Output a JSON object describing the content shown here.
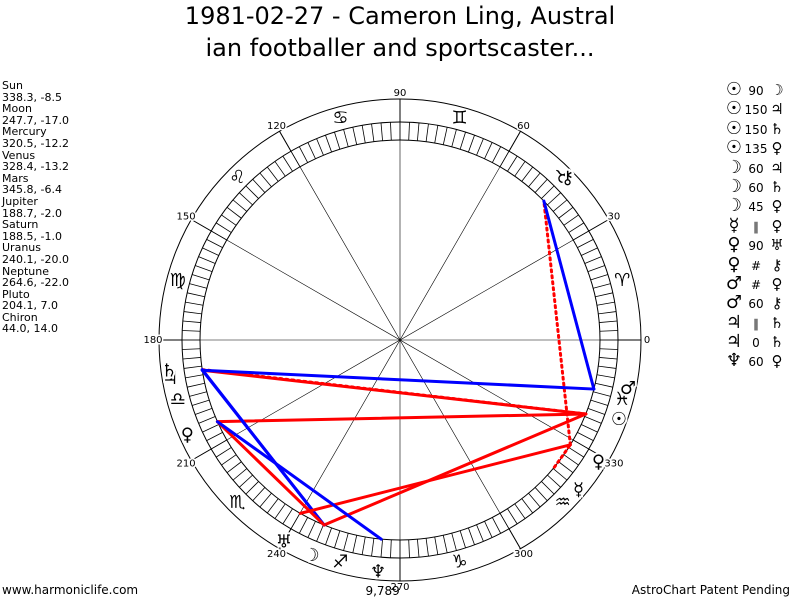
{
  "title": {
    "line1": "1981-02-27 - Cameron Ling, Austral",
    "line2": "ian footballer and sportscaster..."
  },
  "planets": [
    {
      "name": "Sun",
      "position": "338.3, -8.5"
    },
    {
      "name": "Moon",
      "position": "247.7, -17.0"
    },
    {
      "name": "Mercury",
      "position": "320.5, -12.2"
    },
    {
      "name": "Venus",
      "position": "328.4, -13.2"
    },
    {
      "name": "Mars",
      "position": "345.8, -6.4"
    },
    {
      "name": "Jupiter",
      "position": "188.7, -2.0"
    },
    {
      "name": "Saturn",
      "position": "188.5, -1.0"
    },
    {
      "name": "Uranus",
      "position": "240.1, -20.0"
    },
    {
      "name": "Neptune",
      "position": "264.6, -22.0"
    },
    {
      "name": "Pluto",
      "position": "204.1, 7.0"
    },
    {
      "name": "Chiron",
      "position": "44.0, 14.0"
    }
  ],
  "aspects": [
    {
      "p1": "☉",
      "value": "90",
      "p2": "☽"
    },
    {
      "p1": "☉",
      "value": "150",
      "p2": "♃"
    },
    {
      "p1": "☉",
      "value": "150",
      "p2": "♄"
    },
    {
      "p1": "☉",
      "value": "135",
      "p2": "♀"
    },
    {
      "p1": "☽",
      "value": "60",
      "p2": "♃"
    },
    {
      "p1": "☽",
      "value": "60",
      "p2": "♄"
    },
    {
      "p1": "☽",
      "value": "45",
      "p2": "♀"
    },
    {
      "p1": "☿",
      "value": "∥",
      "p2": "♀"
    },
    {
      "p1": "♀",
      "value": "90",
      "p2": "♅"
    },
    {
      "p1": "♀",
      "value": "#",
      "p2": "⚷"
    },
    {
      "p1": "♂",
      "value": "#",
      "p2": "♀"
    },
    {
      "p1": "♂",
      "value": "60",
      "p2": "⚷"
    },
    {
      "p1": "♃",
      "value": "∥",
      "p2": "♄"
    },
    {
      "p1": "♃",
      "value": "0",
      "p2": "♄"
    },
    {
      "p1": "♆",
      "value": "60",
      "p2": "♀"
    }
  ],
  "wheel": {
    "degree_labels": [
      "0",
      "30",
      "60",
      "90",
      "120",
      "150",
      "180",
      "210",
      "240",
      "270",
      "300",
      "330"
    ],
    "signs": [
      {
        "name": "Aries",
        "glyph": "♈"
      },
      {
        "name": "Taurus",
        "glyph": "♉"
      },
      {
        "name": "Gemini",
        "glyph": "♊"
      },
      {
        "name": "Cancer",
        "glyph": "♋"
      },
      {
        "name": "Leo",
        "glyph": "♌"
      },
      {
        "name": "Virgo",
        "glyph": "♍"
      },
      {
        "name": "Libra",
        "glyph": "♎"
      },
      {
        "name": "Scorpio",
        "glyph": "♏"
      },
      {
        "name": "Sagittarius",
        "glyph": "♐"
      },
      {
        "name": "Capricorn",
        "glyph": "♑"
      },
      {
        "name": "Aquarius",
        "glyph": "♒"
      },
      {
        "name": "Pisces",
        "glyph": "♓"
      }
    ],
    "chart_planets": [
      {
        "name": "Sun",
        "glyph": "☉",
        "lon": 338.3,
        "label_lon": 340
      },
      {
        "name": "Moon",
        "glyph": "☽",
        "lon": 247.7,
        "label_lon": 247.7
      },
      {
        "name": "Mercury",
        "glyph": "☿",
        "lon": 320.5,
        "label_lon": 320
      },
      {
        "name": "Venus",
        "glyph": "♀",
        "lon": 328.4,
        "label_lon": 328.4
      },
      {
        "name": "Mars",
        "glyph": "♂",
        "lon": 345.8,
        "label_lon": 348
      },
      {
        "name": "Jupiter",
        "glyph": "♃",
        "lon": 188.7,
        "label_lon": 189.5
      },
      {
        "name": "Saturn",
        "glyph": "♄",
        "lon": 188.5,
        "label_lon": 187.7
      },
      {
        "name": "Uranus",
        "glyph": "♅",
        "lon": 240.1,
        "label_lon": 240.1
      },
      {
        "name": "Neptune",
        "glyph": "♆",
        "lon": 264.6,
        "label_lon": 264.6
      },
      {
        "name": "Pluto",
        "glyph": "♀",
        "lon": 204.1,
        "label_lon": 204.1
      },
      {
        "name": "Chiron",
        "glyph": "⚷",
        "lon": 44.0,
        "label_lon": 44.0
      }
    ],
    "extra_labels": [
      {
        "text": "9,789",
        "anchor_lon": 266
      }
    ],
    "aspect_lines": [
      {
        "a": 338.3,
        "b": 247.7,
        "color": "#ff0000",
        "style": "solid"
      },
      {
        "a": 338.3,
        "b": 188.7,
        "color": "#ff0000",
        "style": "solid"
      },
      {
        "a": 338.3,
        "b": 188.5,
        "color": "#ff0000",
        "style": "dotted"
      },
      {
        "a": 338.3,
        "b": 204.1,
        "color": "#ff0000",
        "style": "solid"
      },
      {
        "a": 247.7,
        "b": 188.7,
        "color": "#0000ff",
        "style": "solid"
      },
      {
        "a": 247.7,
        "b": 188.5,
        "color": "#0000ff",
        "style": "solid"
      },
      {
        "a": 247.7,
        "b": 204.1,
        "color": "#ff0000",
        "style": "solid"
      },
      {
        "a": 320.5,
        "b": 328.4,
        "color": "#ff0000",
        "style": "dotted"
      },
      {
        "a": 328.4,
        "b": 240.1,
        "color": "#ff0000",
        "style": "solid"
      },
      {
        "a": 328.4,
        "b": 44.0,
        "color": "#ff0000",
        "style": "dotted"
      },
      {
        "a": 345.8,
        "b": 44.0,
        "color": "#0000ff",
        "style": "solid"
      },
      {
        "a": 188.7,
        "b": 345.8,
        "color": "#0000ff",
        "style": "solid"
      },
      {
        "a": 264.6,
        "b": 204.1,
        "color": "#0000ff",
        "style": "solid"
      }
    ]
  },
  "footer": {
    "left": "www.harmoniclife.com",
    "right": "AstroChart Patent Pending"
  }
}
